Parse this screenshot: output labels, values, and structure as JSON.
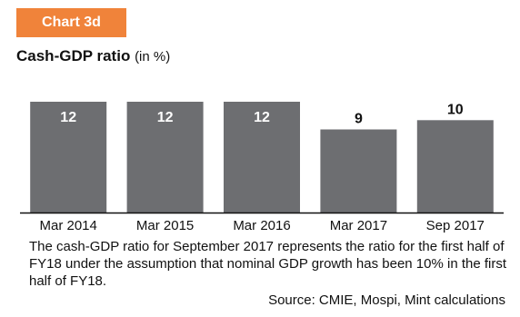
{
  "header": {
    "tag": "Chart 3d",
    "title": "Cash-GDP ratio",
    "unit": "(in %)"
  },
  "colors": {
    "tag": "#f0833a",
    "bar": "#6d6e71",
    "label_inside": "#ffffff",
    "label_outside": "#111111",
    "axis": "#111111"
  },
  "chart_data": {
    "type": "bar",
    "title": "Cash-GDP ratio",
    "categories": [
      "Mar 2014",
      "Mar 2015",
      "Mar 2016",
      "Mar 2017",
      "Sep 2017"
    ],
    "values": [
      12,
      12,
      12,
      9,
      10
    ],
    "xlabel": "",
    "ylabel": "",
    "ylim": [
      0,
      12
    ],
    "grid": false,
    "legend": "none"
  },
  "footnote": "The cash-GDP ratio for September 2017 represents the ratio for the first half of FY18 under the assumption that nominal GDP growth has been 10% in the first half of FY18.",
  "source": "Source: CMIE, Mospi, Mint calculations"
}
